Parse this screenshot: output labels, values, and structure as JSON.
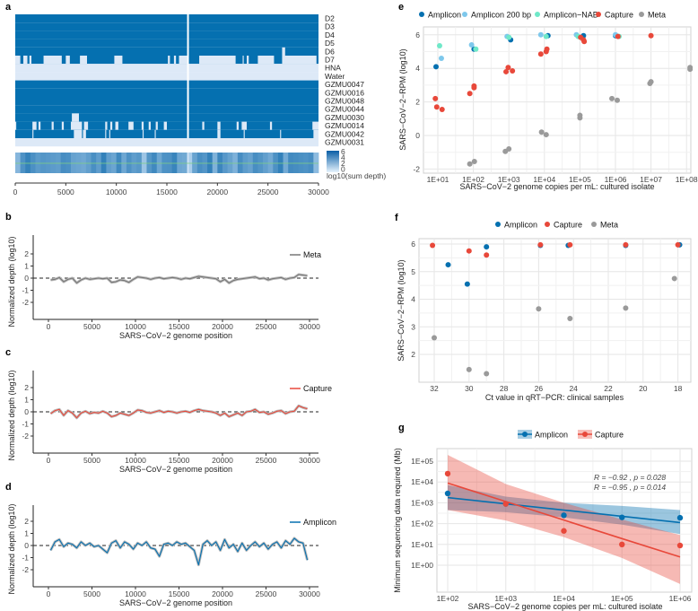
{
  "panel_labels": {
    "a": "a",
    "b": "b",
    "c": "c",
    "d": "d",
    "e": "e",
    "f": "f",
    "g": "g"
  },
  "colors": {
    "dark": "#0570b0",
    "light": "#dde9f7",
    "amplicon": "#0570b0",
    "amplicon200": "#7ec8ec",
    "nab": "#6fe8c8",
    "capture": "#e8483a",
    "meta": "#9a9a9a"
  },
  "chart_data": [
    {
      "id": "a",
      "type": "heatmap",
      "xlim": [
        0,
        30000
      ],
      "xticks": [
        0,
        5000,
        10000,
        15000,
        20000,
        25000,
        30000
      ],
      "legend_title": "log10(sum depth)",
      "legend_ticks": [
        "6",
        "4",
        "2",
        "0"
      ],
      "rows": [
        {
          "label": "D2",
          "coverage": "full"
        },
        {
          "label": "D3",
          "coverage": "full"
        },
        {
          "label": "D4",
          "coverage": "full"
        },
        {
          "label": "D5",
          "coverage": "full"
        },
        {
          "label": "D6",
          "coverage": "gaps",
          "gaps": [
            [
              26400,
              26700
            ]
          ]
        },
        {
          "label": "D7",
          "coverage": "gaps",
          "gaps": [
            [
              0,
              500
            ],
            [
              800,
              1200
            ],
            [
              1400,
              1600
            ],
            [
              2800,
              4600
            ],
            [
              5000,
              5400
            ],
            [
              6400,
              7100
            ],
            [
              9800,
              10600
            ],
            [
              15100,
              15300
            ],
            [
              15700,
              15900
            ],
            [
              16200,
              17000
            ],
            [
              18200,
              21800
            ],
            [
              22500,
              22600
            ],
            [
              22900,
              23100
            ],
            [
              24000,
              25600
            ],
            [
              26400,
              29800
            ]
          ]
        },
        {
          "label": "HNA",
          "coverage": "none"
        },
        {
          "label": "Water",
          "coverage": "none"
        },
        {
          "label": "GZMU0047",
          "coverage": "full"
        },
        {
          "label": "GZMU0016",
          "coverage": "full"
        },
        {
          "label": "GZMU0048",
          "coverage": "full"
        },
        {
          "label": "GZMU0044",
          "coverage": "full"
        },
        {
          "label": "GZMU0030",
          "coverage": "gaps",
          "gaps": [
            [
              5600,
              6300
            ]
          ]
        },
        {
          "label": "GZMU0014",
          "coverage": "gaps",
          "gaps": [
            [
              0,
              100
            ],
            [
              1700,
              2100
            ],
            [
              2300,
              2500
            ],
            [
              3600,
              3800
            ],
            [
              4600,
              4800
            ],
            [
              5500,
              6600
            ],
            [
              6800,
              7200
            ],
            [
              8900,
              9100
            ],
            [
              9400,
              9600
            ],
            [
              9900,
              10200
            ],
            [
              11200,
              11700
            ],
            [
              12500,
              12700
            ],
            [
              13200,
              13400
            ],
            [
              13900,
              14100
            ],
            [
              14700,
              15000
            ],
            [
              18500,
              18700
            ],
            [
              20000,
              20300
            ],
            [
              21900,
              22100
            ],
            [
              22400,
              22900
            ],
            [
              25200,
              25400
            ],
            [
              29400,
              30000
            ]
          ]
        },
        {
          "label": "GZMU0042",
          "coverage": "gaps",
          "gaps": [
            [
              1700,
              1800
            ],
            [
              5800,
              6600
            ],
            [
              6700,
              7000
            ],
            [
              8900,
              9000
            ],
            [
              9300,
              9400
            ],
            [
              12600,
              12700
            ],
            [
              13800,
              13900
            ],
            [
              20000,
              20300
            ],
            [
              22600,
              22700
            ],
            [
              26200,
              26300
            ],
            [
              29500,
              30000
            ]
          ]
        },
        {
          "label": "GZMU0031",
          "coverage": "none"
        }
      ]
    },
    {
      "id": "b",
      "type": "line",
      "legend": "Meta",
      "xlabel": "SARS−CoV−2 genome position",
      "ylabel": "Normalized depth (log10)",
      "yticks": [
        -2,
        -1,
        0,
        1,
        2
      ],
      "xticks": [
        0,
        5000,
        10000,
        15000,
        20000,
        25000,
        30000
      ],
      "step": 500,
      "values": [
        -0.15,
        -0.1,
        0.05,
        -0.3,
        -0.1,
        0.0,
        -0.4,
        -0.15,
        0.0,
        -0.1,
        -0.05,
        0.0,
        -0.05,
        0.0,
        -0.35,
        -0.3,
        -0.15,
        -0.2,
        -0.35,
        -0.1,
        0.1,
        0.05,
        0.0,
        -0.1,
        0.0,
        0.05,
        -0.05,
        0.0,
        0.05,
        0.0,
        -0.1,
        0.0,
        -0.05,
        0.05,
        0.15,
        0.1,
        0.05,
        0.0,
        -0.05,
        -0.3,
        -0.1,
        -0.4,
        -0.2,
        -0.1,
        -0.05,
        0.0,
        0.05,
        0.1,
        -0.05,
        0.0,
        -0.15,
        -0.05,
        0.0,
        0.05,
        -0.1,
        0.0,
        0.05,
        0.3,
        0.25,
        0.2
      ]
    },
    {
      "id": "c",
      "type": "line",
      "legend": "Capture",
      "xlabel": "SARS−CoV−2 genome position",
      "ylabel": "Normalized depth (log10)",
      "yticks": [
        -2,
        -1,
        0,
        1,
        2
      ],
      "xticks": [
        0,
        5000,
        10000,
        15000,
        20000,
        25000,
        30000
      ],
      "step": 500,
      "values": [
        -0.15,
        0.1,
        0.2,
        -0.3,
        0.1,
        -0.1,
        -0.5,
        -0.1,
        0.05,
        -0.15,
        -0.05,
        -0.1,
        0.05,
        -0.1,
        -0.4,
        -0.3,
        -0.1,
        -0.2,
        -0.3,
        -0.1,
        0.15,
        0.1,
        -0.05,
        -0.1,
        0.0,
        0.1,
        -0.05,
        0.05,
        0.0,
        -0.1,
        0.0,
        0.05,
        -0.05,
        0.1,
        0.2,
        0.1,
        0.05,
        0.0,
        -0.1,
        -0.3,
        -0.1,
        -0.4,
        -0.25,
        -0.1,
        -0.3,
        0.0,
        0.05,
        0.2,
        -0.05,
        0.0,
        -0.2,
        -0.1,
        0.05,
        0.1,
        -0.15,
        0.0,
        0.05,
        0.5,
        0.35,
        0.25
      ]
    },
    {
      "id": "d",
      "type": "line",
      "legend": "Amplicon",
      "xlabel": "SARS−CoV−2 genome position",
      "ylabel": "Normalized depth (log10)",
      "yticks": [
        -2,
        -1,
        0,
        1,
        2
      ],
      "xticks": [
        0,
        5000,
        10000,
        15000,
        20000,
        25000,
        30000
      ],
      "step": 500,
      "values": [
        -0.4,
        0.3,
        0.5,
        -0.1,
        0.2,
        0.1,
        -0.2,
        0.3,
        0.0,
        0.2,
        -0.1,
        0.0,
        -0.3,
        -0.6,
        0.2,
        0.4,
        -0.2,
        0.3,
        0.1,
        -0.3,
        0.2,
        0.0,
        0.3,
        -0.2,
        -0.3,
        -0.9,
        0.1,
        0.2,
        0.0,
        0.3,
        0.1,
        0.2,
        -0.1,
        -0.4,
        -1.6,
        0.1,
        0.4,
        0.0,
        0.3,
        -0.4,
        0.5,
        -0.2,
        0.1,
        -0.5,
        0.2,
        -0.4,
        0.0,
        0.3,
        -0.1,
        0.2,
        -0.3,
        0.1,
        0.3,
        -0.2,
        0.4,
        0.1,
        0.6,
        0.3,
        0.2,
        -1.2
      ]
    },
    {
      "id": "e",
      "type": "scatter",
      "xlabel": "SARS−CoV−2 genome copies per mL: cultured isolate",
      "ylabel": "SARS−CoV−2−RPM (log10)",
      "xscale": "log10",
      "xlim": [
        0.6,
        8.4
      ],
      "ylim": [
        -2.2,
        6.3
      ],
      "xticks": [
        "1E+01",
        "1E+02",
        "1E+03",
        "1E+04",
        "1E+05",
        "1E+06",
        "1E+07",
        "1E+08"
      ],
      "yticks": [
        -2,
        0,
        2,
        4,
        6
      ],
      "series": [
        {
          "name": "Amplicon",
          "color": "#0570b0",
          "points": [
            [
              0.95,
              4.1
            ],
            [
              2.02,
              5.15
            ],
            [
              3.05,
              5.7
            ],
            [
              4.1,
              5.95
            ],
            [
              5.1,
              5.95
            ],
            [
              6.0,
              5.95
            ]
          ]
        },
        {
          "name": "Amplicon 200 bp",
          "color": "#7ec8ec",
          "points": [
            [
              1.1,
              4.6
            ],
            [
              1.95,
              5.4
            ],
            [
              2.95,
              5.9
            ],
            [
              3.9,
              6.0
            ],
            [
              4.9,
              6.0
            ],
            [
              6.0,
              6.0
            ]
          ]
        },
        {
          "name": "Amplicon−NAB",
          "color": "#6fe8c8",
          "points": [
            [
              1.05,
              5.35
            ],
            [
              2.07,
              5.15
            ],
            [
              3.0,
              5.85
            ],
            [
              4.05,
              5.9
            ],
            [
              4.95,
              5.9
            ],
            [
              6.1,
              5.9
            ]
          ]
        },
        {
          "name": "Capture",
          "color": "#e8483a",
          "points": [
            [
              0.93,
              2.2
            ],
            [
              0.97,
              1.7
            ],
            [
              1.12,
              1.55
            ],
            [
              1.9,
              2.5
            ],
            [
              2.02,
              2.95
            ],
            [
              2.02,
              2.85
            ],
            [
              2.92,
              3.8
            ],
            [
              2.98,
              4.05
            ],
            [
              3.1,
              3.85
            ],
            [
              3.9,
              4.85
            ],
            [
              4.05,
              5.0
            ],
            [
              4.07,
              5.15
            ],
            [
              5.02,
              5.85
            ],
            [
              5.12,
              5.6
            ],
            [
              5.1,
              5.7
            ],
            [
              6.07,
              5.9
            ],
            [
              7.0,
              5.95
            ]
          ]
        },
        {
          "name": "Meta",
          "color": "#9a9a9a",
          "points": [
            [
              1.9,
              -1.7
            ],
            [
              2.03,
              -1.55
            ],
            [
              2.9,
              -0.95
            ],
            [
              3.0,
              -0.8
            ],
            [
              3.92,
              0.2
            ],
            [
              4.05,
              0.05
            ],
            [
              5.0,
              1.2
            ],
            [
              5.0,
              1.05
            ],
            [
              5.9,
              2.2
            ],
            [
              6.05,
              2.1
            ],
            [
              6.97,
              3.1
            ],
            [
              7.0,
              3.2
            ],
            [
              8.1,
              4.05
            ],
            [
              8.1,
              3.95
            ]
          ]
        }
      ]
    },
    {
      "id": "f",
      "type": "scatter",
      "xlabel": "Ct value in qRT−PCR: clinical samples",
      "ylabel": "SARS−CoV−2−RPM (log10)",
      "xlim": [
        33.5,
        17.2
      ],
      "ylim": [
        1.1,
        6.2
      ],
      "xticks": [
        32,
        30,
        28,
        26,
        24,
        22,
        20,
        18
      ],
      "yticks": [
        2,
        3,
        4,
        5,
        6
      ],
      "series": [
        {
          "name": "Amplicon",
          "color": "#0570b0",
          "points": [
            [
              31.2,
              5.25
            ],
            [
              30.1,
              4.55
            ],
            [
              29.0,
              5.9
            ],
            [
              25.9,
              5.95
            ],
            [
              24.3,
              5.95
            ],
            [
              21.0,
              5.95
            ],
            [
              17.9,
              5.97
            ]
          ]
        },
        {
          "name": "Capture",
          "color": "#e8483a",
          "points": [
            [
              32.1,
              5.95
            ],
            [
              30.0,
              5.75
            ],
            [
              29.0,
              5.6
            ],
            [
              25.9,
              5.97
            ],
            [
              24.2,
              5.97
            ],
            [
              21.0,
              5.97
            ],
            [
              18.0,
              5.97
            ]
          ]
        },
        {
          "name": "Meta",
          "color": "#9a9a9a",
          "points": [
            [
              32.0,
              2.6
            ],
            [
              30.0,
              1.45
            ],
            [
              29.0,
              1.3
            ],
            [
              26.0,
              3.65
            ],
            [
              24.2,
              3.3
            ],
            [
              21.0,
              3.68
            ],
            [
              18.2,
              4.75
            ]
          ]
        }
      ]
    },
    {
      "id": "g",
      "type": "scatter",
      "xlabel": "SARS−CoV−2 genome copies per mL: cultured isolate",
      "ylabel": "Minimum sequencing data required (Mb)",
      "xscale": "log10",
      "yscale": "log10",
      "xlim": [
        1.8,
        6.2
      ],
      "ylim": [
        -1.1,
        5.5
      ],
      "xticks": [
        "1E+02",
        "1E+03",
        "1E+04",
        "1E+05",
        "1E+06"
      ],
      "yticks": [
        "1E+00",
        "1E+01",
        "1E+02",
        "1E+03",
        "1E+04",
        "1E+05"
      ],
      "series": [
        {
          "name": "Amplicon",
          "color": "#0570b0",
          "points": [
            [
              2,
              3.45
            ],
            [
              3,
              2.95
            ],
            [
              4,
              2.4
            ],
            [
              5,
              2.3
            ],
            [
              6,
              2.28
            ]
          ],
          "fit_x": [
            2,
            3,
            4,
            5,
            6
          ],
          "fit": [
            3.25,
            2.95,
            2.65,
            2.35,
            2.05
          ],
          "band_upper": [
            3.85,
            3.3,
            3.0,
            2.85,
            2.65
          ],
          "band_lower": [
            2.65,
            2.55,
            2.3,
            1.95,
            1.5
          ],
          "annotation": "R = −0.92 , p = 0.028"
        },
        {
          "name": "Capture",
          "color": "#e8483a",
          "points": [
            [
              2,
              4.4
            ],
            [
              3,
              2.95
            ],
            [
              4,
              1.65
            ],
            [
              5,
              1.0
            ],
            [
              6,
              0.95
            ]
          ],
          "fit_x": [
            2,
            3,
            4,
            5,
            6
          ],
          "fit": [
            3.95,
            3.06,
            2.17,
            1.28,
            0.4
          ],
          "band_upper": [
            5.3,
            3.9,
            3.0,
            2.2,
            1.45
          ],
          "band_lower": [
            2.65,
            2.15,
            1.35,
            0.35,
            -0.9
          ],
          "annotation": "R = −0.95 , p = 0.014"
        }
      ]
    }
  ]
}
